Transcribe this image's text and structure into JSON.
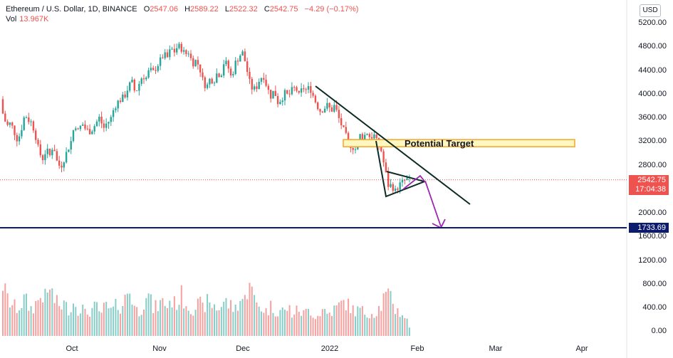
{
  "header": {
    "symbol": "Ethereum / U.S. Dollar, 1D, BINANCE",
    "o_label": "O",
    "o_value": "2547.06",
    "h_label": "H",
    "h_value": "2589.22",
    "l_label": "L",
    "l_value": "2522.32",
    "c_label": "C",
    "c_value": "2542.75",
    "change": "−4.29 (−0.17%)",
    "vol_label": "Vol",
    "vol_value": "13.967K",
    "currency": "USD"
  },
  "price_tags": {
    "last_price": "2542.75",
    "countdown": "17:04:38",
    "support": "1733.69"
  },
  "annotation": {
    "target_label": "Potential Target"
  },
  "colors": {
    "up": "#26a69a",
    "down": "#ef5350",
    "support_line": "#0d1b6e",
    "trendline": "#0d2b25",
    "target_border": "#f5a623",
    "target_fill": "#fff7c2",
    "arrow": "#9c27b0"
  },
  "chart_data": {
    "type": "candlestick",
    "symbol": "Ethereum / U.S. Dollar",
    "interval": "1D",
    "exchange": "BINANCE",
    "x_ticks": [
      "Oct",
      "Nov",
      "Dec",
      "2022",
      "Feb",
      "Mar",
      "Apr"
    ],
    "y_ticks": [
      "5200.00",
      "4800.00",
      "4400.00",
      "4000.00",
      "3600.00",
      "3200.00",
      "2800.00",
      "2000.00",
      "1600.00"
    ],
    "volume_ticks": [
      "1200.00",
      "800.00",
      "400.00",
      "0.00"
    ],
    "last_price": 2542.75,
    "support_level": 1733.69,
    "target_zone": [
      3100,
      3220
    ],
    "close_path": [
      [
        0,
        3900
      ],
      [
        5,
        3600
      ],
      [
        10,
        3450
      ],
      [
        15,
        3500
      ],
      [
        20,
        3350
      ],
      [
        25,
        3200
      ],
      [
        30,
        3400
      ],
      [
        35,
        3650
      ],
      [
        40,
        3550
      ],
      [
        45,
        3500
      ],
      [
        50,
        3280
      ],
      [
        55,
        3000
      ],
      [
        60,
        2900
      ],
      [
        65,
        3050
      ],
      [
        70,
        2950
      ],
      [
        75,
        3150
      ],
      [
        80,
        2850
      ],
      [
        85,
        2750
      ],
      [
        90,
        2900
      ],
      [
        95,
        3050
      ],
      [
        100,
        3200
      ],
      [
        105,
        3500
      ],
      [
        110,
        3350
      ],
      [
        115,
        3500
      ],
      [
        120,
        3400
      ],
      [
        125,
        3350
      ],
      [
        130,
        3400
      ],
      [
        135,
        3500
      ],
      [
        140,
        3600
      ],
      [
        145,
        3400
      ],
      [
        150,
        3500
      ],
      [
        155,
        3550
      ],
      [
        160,
        3750
      ],
      [
        165,
        3850
      ],
      [
        170,
        3900
      ],
      [
        175,
        3950
      ],
      [
        180,
        4100
      ],
      [
        185,
        4200
      ],
      [
        190,
        4000
      ],
      [
        195,
        4150
      ],
      [
        200,
        4300
      ],
      [
        205,
        4250
      ],
      [
        210,
        4400
      ],
      [
        215,
        4350
      ],
      [
        220,
        4450
      ],
      [
        225,
        4550
      ],
      [
        230,
        4650
      ],
      [
        235,
        4600
      ],
      [
        240,
        4750
      ],
      [
        245,
        4700
      ],
      [
        250,
        4800
      ],
      [
        255,
        4750
      ],
      [
        260,
        4650
      ],
      [
        265,
        4700
      ],
      [
        270,
        4500
      ],
      [
        275,
        4550
      ],
      [
        280,
        4450
      ],
      [
        285,
        4200
      ],
      [
        290,
        4100
      ],
      [
        295,
        4250
      ],
      [
        300,
        4200
      ],
      [
        305,
        4350
      ],
      [
        310,
        4300
      ],
      [
        315,
        4550
      ],
      [
        320,
        4450
      ],
      [
        325,
        4250
      ],
      [
        330,
        4500
      ],
      [
        335,
        4600
      ],
      [
        340,
        4700
      ],
      [
        345,
        4500
      ],
      [
        350,
        4200
      ],
      [
        355,
        4050
      ],
      [
        360,
        4100
      ],
      [
        365,
        4250
      ],
      [
        370,
        4300
      ],
      [
        375,
        4100
      ],
      [
        380,
        3950
      ],
      [
        385,
        4050
      ],
      [
        390,
        3850
      ],
      [
        395,
        3900
      ],
      [
        400,
        4000
      ],
      [
        405,
        3950
      ],
      [
        410,
        4050
      ],
      [
        415,
        4100
      ],
      [
        420,
        3950
      ],
      [
        425,
        4100
      ],
      [
        430,
        4050
      ],
      [
        435,
        4100
      ],
      [
        440,
        3950
      ],
      [
        445,
        3800
      ],
      [
        450,
        3700
      ],
      [
        455,
        3750
      ],
      [
        460,
        3800
      ],
      [
        465,
        3700
      ],
      [
        470,
        3800
      ],
      [
        475,
        3600
      ],
      [
        480,
        3450
      ],
      [
        485,
        3300
      ],
      [
        490,
        3150
      ],
      [
        495,
        3100
      ],
      [
        500,
        3050
      ],
      [
        505,
        3300
      ],
      [
        510,
        3250
      ],
      [
        515,
        3350
      ],
      [
        520,
        3250
      ],
      [
        525,
        3300
      ],
      [
        530,
        3150
      ],
      [
        535,
        3050
      ],
      [
        540,
        2750
      ],
      [
        545,
        2450
      ],
      [
        550,
        2450
      ],
      [
        555,
        2350
      ],
      [
        560,
        2450
      ],
      [
        565,
        2500
      ],
      [
        570,
        2550
      ],
      [
        575,
        2542.75
      ]
    ],
    "volume_path": [
      [
        0,
        1300
      ],
      [
        5,
        800
      ],
      [
        10,
        600
      ],
      [
        15,
        500
      ],
      [
        20,
        450
      ],
      [
        25,
        400
      ],
      [
        30,
        500
      ],
      [
        35,
        600
      ],
      [
        40,
        450
      ],
      [
        45,
        400
      ],
      [
        50,
        500
      ],
      [
        55,
        600
      ],
      [
        60,
        700
      ],
      [
        65,
        550
      ],
      [
        70,
        850
      ],
      [
        75,
        600
      ],
      [
        80,
        500
      ],
      [
        85,
        450
      ],
      [
        90,
        500
      ],
      [
        95,
        400
      ],
      [
        100,
        450
      ],
      [
        105,
        550
      ],
      [
        110,
        400
      ],
      [
        115,
        450
      ],
      [
        120,
        300
      ],
      [
        125,
        350
      ],
      [
        130,
        400
      ],
      [
        135,
        450
      ],
      [
        140,
        300
      ],
      [
        145,
        400
      ],
      [
        150,
        450
      ],
      [
        155,
        350
      ],
      [
        160,
        400
      ],
      [
        165,
        500
      ],
      [
        170,
        450
      ],
      [
        175,
        550
      ],
      [
        180,
        800
      ],
      [
        185,
        650
      ],
      [
        190,
        400
      ],
      [
        195,
        350
      ],
      [
        200,
        450
      ],
      [
        205,
        750
      ],
      [
        210,
        600
      ],
      [
        215,
        400
      ],
      [
        220,
        450
      ],
      [
        225,
        500
      ],
      [
        230,
        550
      ],
      [
        235,
        450
      ],
      [
        240,
        600
      ],
      [
        245,
        500
      ],
      [
        250,
        550
      ],
      [
        255,
        650
      ],
      [
        260,
        550
      ],
      [
        265,
        450
      ],
      [
        270,
        400
      ],
      [
        275,
        450
      ],
      [
        280,
        500
      ],
      [
        285,
        400
      ],
      [
        290,
        550
      ],
      [
        295,
        450
      ],
      [
        300,
        500
      ],
      [
        305,
        400
      ],
      [
        310,
        450
      ],
      [
        315,
        550
      ],
      [
        320,
        500
      ],
      [
        325,
        450
      ],
      [
        330,
        400
      ],
      [
        335,
        550
      ],
      [
        340,
        600
      ],
      [
        345,
        550
      ],
      [
        350,
        1150
      ],
      [
        355,
        600
      ],
      [
        360,
        500
      ],
      [
        365,
        450
      ],
      [
        370,
        400
      ],
      [
        375,
        350
      ],
      [
        380,
        450
      ],
      [
        385,
        400
      ],
      [
        390,
        350
      ],
      [
        395,
        400
      ],
      [
        400,
        350
      ],
      [
        405,
        450
      ],
      [
        410,
        300
      ],
      [
        415,
        350
      ],
      [
        420,
        400
      ],
      [
        425,
        300
      ],
      [
        430,
        350
      ],
      [
        435,
        400
      ],
      [
        440,
        300
      ],
      [
        445,
        250
      ],
      [
        450,
        350
      ],
      [
        455,
        400
      ],
      [
        460,
        300
      ],
      [
        465,
        350
      ],
      [
        470,
        400
      ],
      [
        475,
        450
      ],
      [
        480,
        500
      ],
      [
        485,
        550
      ],
      [
        490,
        450
      ],
      [
        495,
        400
      ],
      [
        500,
        350
      ],
      [
        505,
        400
      ],
      [
        510,
        350
      ],
      [
        515,
        300
      ],
      [
        520,
        350
      ],
      [
        525,
        300
      ],
      [
        530,
        400
      ],
      [
        535,
        450
      ],
      [
        540,
        650
      ],
      [
        545,
        600
      ],
      [
        550,
        650
      ],
      [
        555,
        400
      ],
      [
        560,
        350
      ],
      [
        565,
        300
      ],
      [
        570,
        250
      ],
      [
        575,
        50
      ]
    ]
  }
}
